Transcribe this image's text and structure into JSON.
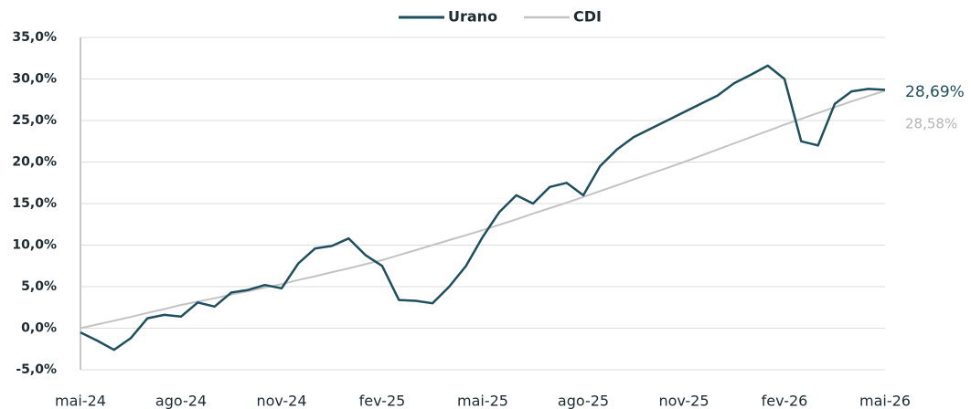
{
  "chart_data": {
    "type": "line",
    "categories": [
      "mai-24",
      null,
      null,
      null,
      null,
      null,
      "ago-24",
      null,
      null,
      null,
      null,
      null,
      "nov-24",
      null,
      null,
      null,
      null,
      null,
      "fev-25",
      null,
      null,
      null,
      null,
      null,
      "mai-25",
      null,
      null,
      null,
      null,
      null,
      "ago-25",
      null,
      null,
      null,
      null,
      null,
      "nov-25",
      null,
      null,
      null,
      null,
      null,
      "fev-26",
      null,
      null,
      null,
      null,
      null,
      "mai-26"
    ],
    "series": [
      {
        "name": "Urano",
        "color": "#1d4f5f",
        "values": [
          -0.5,
          -1.5,
          -2.6,
          -1.2,
          1.2,
          1.6,
          1.4,
          3.1,
          2.6,
          4.3,
          4.6,
          5.2,
          4.8,
          7.8,
          9.6,
          9.9,
          10.8,
          8.8,
          7.5,
          3.4,
          3.3,
          3.0,
          5.0,
          7.5,
          11.0,
          14.0,
          16.0,
          15.0,
          17.0,
          17.5,
          16.0,
          19.5,
          21.5,
          23.0,
          24.0,
          25.0,
          26.0,
          27.0,
          28.0,
          29.5,
          30.5,
          31.6,
          30.0,
          22.5,
          22.0,
          27.0,
          28.5,
          28.8,
          28.69
        ],
        "value_labels": [
          null,
          null,
          null,
          null,
          null,
          null,
          null,
          null,
          null,
          null,
          null,
          null,
          null,
          null,
          null,
          null,
          null,
          null,
          null,
          null,
          null,
          null,
          null,
          null,
          null,
          null,
          null,
          null,
          null,
          null,
          null,
          null,
          null,
          null,
          null,
          null,
          null,
          null,
          null,
          null,
          null,
          null,
          null,
          null,
          null,
          null,
          null,
          null,
          "28,69%"
        ]
      },
      {
        "name": "CDI",
        "color": "#c3c3c3",
        "values": [
          0,
          0.45,
          0.9,
          1.35,
          1.85,
          2.3,
          2.8,
          3.2,
          3.6,
          4.05,
          4.45,
          4.9,
          5.3,
          5.8,
          6.25,
          6.75,
          7.2,
          7.7,
          8.2,
          8.8,
          9.4,
          10.0,
          10.6,
          11.2,
          11.8,
          12.45,
          13.1,
          13.8,
          14.45,
          15.1,
          15.8,
          16.5,
          17.2,
          17.9,
          18.6,
          19.3,
          20.0,
          20.75,
          21.5,
          22.25,
          23.0,
          23.75,
          24.5,
          25.2,
          25.9,
          26.6,
          27.3,
          27.95,
          28.58
        ],
        "value_labels": [
          null,
          null,
          null,
          null,
          null,
          null,
          null,
          null,
          null,
          null,
          null,
          null,
          null,
          null,
          null,
          null,
          null,
          null,
          null,
          null,
          null,
          null,
          null,
          null,
          null,
          null,
          null,
          null,
          null,
          null,
          null,
          null,
          null,
          null,
          null,
          null,
          null,
          null,
          null,
          null,
          null,
          null,
          null,
          null,
          null,
          null,
          null,
          null,
          "28,58%"
        ]
      }
    ],
    "ylim": [
      -5,
      35
    ],
    "yticks": [
      {
        "value": -5,
        "label": "-5,0%"
      },
      {
        "value": 0,
        "label": "0,0%"
      },
      {
        "value": 5,
        "label": "5,0%"
      },
      {
        "value": 10,
        "label": "10,0%"
      },
      {
        "value": 15,
        "label": "15,0%"
      },
      {
        "value": 20,
        "label": "20,0%"
      },
      {
        "value": 25,
        "label": "25,0%"
      },
      {
        "value": 30,
        "label": "30,0%"
      },
      {
        "value": 35,
        "label": "35,0%"
      }
    ],
    "grid": true,
    "legend": "top"
  }
}
